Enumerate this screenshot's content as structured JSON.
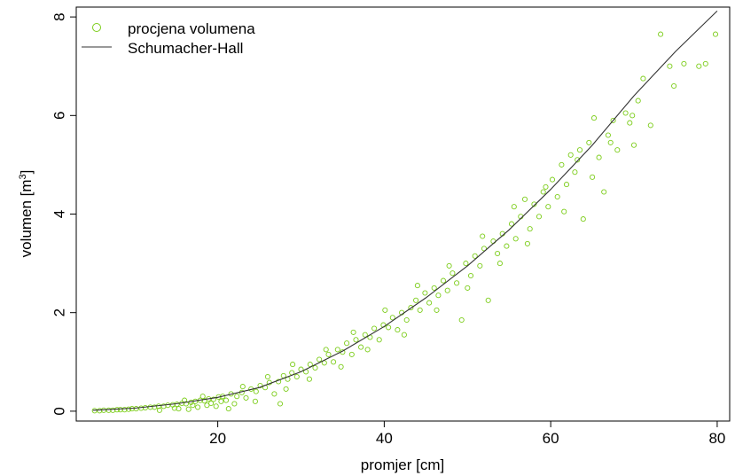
{
  "chart_data": {
    "type": "scatter",
    "xlabel": "promjer [cm]",
    "ylabel_main": "volumen [m",
    "ylabel_sup": "3",
    "ylabel_close": "]",
    "xlim": [
      3,
      81.5
    ],
    "ylim": [
      -0.2,
      8.2
    ],
    "xticks": [
      20,
      40,
      60,
      80
    ],
    "yticks": [
      0,
      2,
      4,
      6,
      8
    ],
    "grid": false,
    "legend_position": "top-left",
    "series": [
      {
        "name": "procjena volumena",
        "kind": "points",
        "color": "#7ccd1a"
      },
      {
        "name": "Schumacher-Hall",
        "kind": "line",
        "color": "#333333",
        "x": [
          5,
          10,
          15,
          20,
          25,
          30,
          35,
          40,
          45,
          50,
          55,
          60,
          65,
          70,
          75,
          80
        ],
        "y": [
          0.02,
          0.06,
          0.15,
          0.28,
          0.48,
          0.8,
          1.22,
          1.72,
          2.3,
          2.95,
          3.68,
          4.5,
          5.4,
          6.4,
          7.3,
          8.12
        ]
      }
    ],
    "points": [
      [
        5.2,
        0.01
      ],
      [
        5.8,
        0.01
      ],
      [
        6.3,
        0.02
      ],
      [
        6.9,
        0.02
      ],
      [
        7.4,
        0.02
      ],
      [
        7.9,
        0.03
      ],
      [
        8.3,
        0.03
      ],
      [
        8.8,
        0.03
      ],
      [
        9.3,
        0.04
      ],
      [
        9.7,
        0.05
      ],
      [
        10.2,
        0.05
      ],
      [
        10.8,
        0.06
      ],
      [
        11.3,
        0.07
      ],
      [
        11.9,
        0.08
      ],
      [
        12.4,
        0.08
      ],
      [
        12.9,
        0.1
      ],
      [
        13.5,
        0.1
      ],
      [
        14.0,
        0.12
      ],
      [
        14.6,
        0.13
      ],
      [
        15.1,
        0.14
      ],
      [
        15.7,
        0.16
      ],
      [
        16.2,
        0.15
      ],
      [
        16.8,
        0.18
      ],
      [
        17.3,
        0.2
      ],
      [
        17.9,
        0.22
      ],
      [
        18.4,
        0.21
      ],
      [
        18.9,
        0.25
      ],
      [
        19.5,
        0.24
      ],
      [
        20.1,
        0.29
      ],
      [
        20.6,
        0.3
      ],
      [
        15.3,
        0.05
      ],
      [
        16.5,
        0.04
      ],
      [
        17.6,
        0.08
      ],
      [
        18.7,
        0.12
      ],
      [
        19.8,
        0.1
      ],
      [
        21.0,
        0.22
      ],
      [
        21.6,
        0.35
      ],
      [
        22.3,
        0.3
      ],
      [
        22.9,
        0.38
      ],
      [
        23.4,
        0.27
      ],
      [
        24.0,
        0.45
      ],
      [
        24.6,
        0.4
      ],
      [
        25.1,
        0.52
      ],
      [
        25.7,
        0.48
      ],
      [
        26.2,
        0.58
      ],
      [
        26.8,
        0.35
      ],
      [
        27.3,
        0.6
      ],
      [
        27.5,
        0.15
      ],
      [
        27.9,
        0.72
      ],
      [
        28.4,
        0.65
      ],
      [
        28.9,
        0.78
      ],
      [
        29.5,
        0.7
      ],
      [
        30.0,
        0.85
      ],
      [
        30.6,
        0.8
      ],
      [
        31.1,
        0.95
      ],
      [
        31.7,
        0.88
      ],
      [
        32.2,
        1.05
      ],
      [
        32.8,
        0.98
      ],
      [
        33.3,
        1.15
      ],
      [
        33.9,
        1.0
      ],
      [
        34.4,
        1.25
      ],
      [
        35.0,
        1.2
      ],
      [
        35.5,
        1.38
      ],
      [
        36.1,
        1.15
      ],
      [
        36.6,
        1.45
      ],
      [
        37.2,
        1.3
      ],
      [
        37.7,
        1.55
      ],
      [
        38.3,
        1.5
      ],
      [
        38.8,
        1.68
      ],
      [
        39.4,
        1.45
      ],
      [
        39.9,
        1.75
      ],
      [
        40.5,
        1.7
      ],
      [
        41.0,
        1.9
      ],
      [
        41.6,
        1.65
      ],
      [
        42.1,
        2.0
      ],
      [
        42.7,
        1.85
      ],
      [
        43.2,
        2.1
      ],
      [
        43.8,
        2.25
      ],
      [
        44.3,
        2.05
      ],
      [
        44.9,
        2.4
      ],
      [
        45.4,
        2.2
      ],
      [
        46.0,
        2.5
      ],
      [
        46.5,
        2.35
      ],
      [
        47.1,
        2.65
      ],
      [
        47.6,
        2.45
      ],
      [
        48.2,
        2.8
      ],
      [
        48.7,
        2.6
      ],
      [
        49.3,
        1.85
      ],
      [
        49.8,
        3.0
      ],
      [
        50.4,
        2.75
      ],
      [
        50.9,
        3.15
      ],
      [
        51.5,
        2.95
      ],
      [
        52.0,
        3.3
      ],
      [
        52.5,
        2.25
      ],
      [
        53.1,
        3.45
      ],
      [
        53.6,
        3.2
      ],
      [
        54.2,
        3.6
      ],
      [
        54.7,
        3.35
      ],
      [
        55.3,
        3.8
      ],
      [
        55.8,
        3.5
      ],
      [
        56.4,
        3.95
      ],
      [
        56.9,
        4.3
      ],
      [
        57.5,
        3.7
      ],
      [
        58.0,
        4.2
      ],
      [
        58.6,
        3.95
      ],
      [
        59.1,
        4.45
      ],
      [
        59.7,
        4.15
      ],
      [
        60.2,
        4.7
      ],
      [
        60.8,
        4.35
      ],
      [
        61.3,
        5.0
      ],
      [
        61.9,
        4.6
      ],
      [
        62.4,
        5.2
      ],
      [
        62.9,
        4.85
      ],
      [
        63.5,
        5.3
      ],
      [
        63.9,
        3.9
      ],
      [
        64.6,
        5.45
      ],
      [
        65.2,
        5.95
      ],
      [
        65.8,
        5.15
      ],
      [
        66.4,
        4.45
      ],
      [
        66.9,
        5.6
      ],
      [
        67.5,
        5.9
      ],
      [
        68.0,
        5.3
      ],
      [
        69.0,
        6.05
      ],
      [
        69.5,
        5.85
      ],
      [
        70.0,
        5.4
      ],
      [
        70.5,
        6.3
      ],
      [
        71.1,
        6.75
      ],
      [
        72.0,
        5.8
      ],
      [
        73.2,
        7.65
      ],
      [
        74.3,
        7.0
      ],
      [
        74.8,
        6.6
      ],
      [
        76.0,
        7.05
      ],
      [
        77.8,
        7.0
      ],
      [
        78.6,
        7.05
      ],
      [
        79.8,
        7.65
      ],
      [
        21.3,
        0.05
      ],
      [
        22.0,
        0.15
      ],
      [
        23.0,
        0.5
      ],
      [
        24.5,
        0.2
      ],
      [
        26.0,
        0.7
      ],
      [
        28.2,
        0.45
      ],
      [
        29.0,
        0.95
      ],
      [
        31.0,
        0.65
      ],
      [
        33.0,
        1.25
      ],
      [
        34.8,
        0.9
      ],
      [
        36.3,
        1.6
      ],
      [
        38.0,
        1.25
      ],
      [
        40.1,
        2.05
      ],
      [
        42.4,
        1.55
      ],
      [
        44.0,
        2.55
      ],
      [
        46.3,
        2.05
      ],
      [
        47.8,
        2.95
      ],
      [
        50.0,
        2.5
      ],
      [
        51.8,
        3.55
      ],
      [
        53.9,
        3.0
      ],
      [
        55.6,
        4.15
      ],
      [
        57.2,
        3.4
      ],
      [
        59.4,
        4.55
      ],
      [
        61.6,
        4.05
      ],
      [
        63.2,
        5.1
      ],
      [
        65.0,
        4.75
      ],
      [
        67.2,
        5.45
      ],
      [
        69.8,
        6.0
      ],
      [
        13.0,
        0.02
      ],
      [
        14.8,
        0.06
      ],
      [
        16.0,
        0.22
      ],
      [
        17.0,
        0.12
      ],
      [
        18.2,
        0.3
      ],
      [
        19.2,
        0.16
      ],
      [
        20.4,
        0.2
      ]
    ]
  }
}
